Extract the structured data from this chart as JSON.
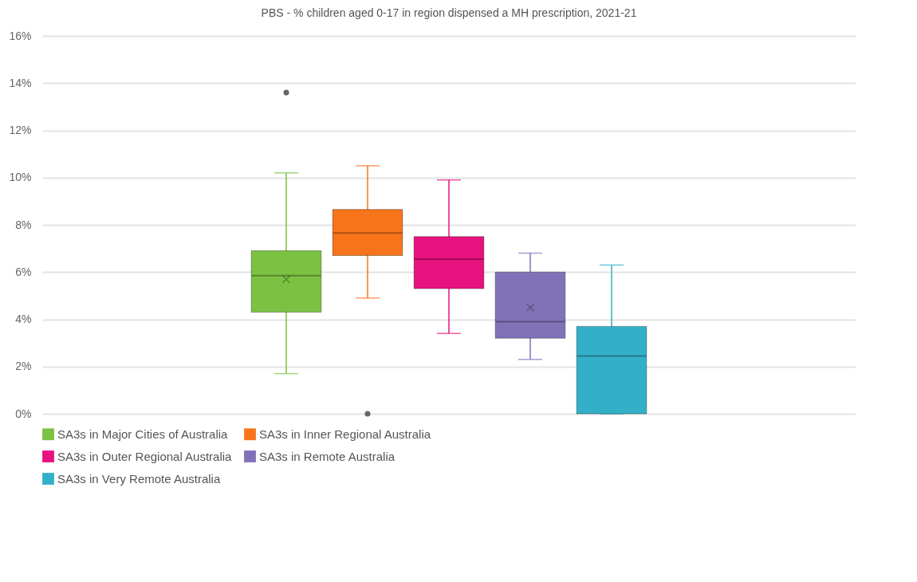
{
  "chart_data": {
    "type": "box",
    "title": "PBS - % children aged 0-17 in region dispensed a MH prescription, 2021-21",
    "categories": [
      null
    ],
    "series": [
      {
        "name": "SA3s in Major Cities of Australia",
        "color": "#7bc142",
        "boxes": [
          {
            "low": 1.7,
            "q1": 4.3,
            "median": 5.85,
            "q3": 6.9,
            "high": 10.2,
            "mean": 5.7,
            "outliers": [
              13.6
            ]
          }
        ]
      },
      {
        "name": "SA3s in Inner Regional Australia",
        "color": "#f7741a",
        "boxes": [
          {
            "low": 4.9,
            "q1": 6.7,
            "median": 7.65,
            "q3": 8.65,
            "high": 10.5,
            "outliers": [
              0
            ]
          }
        ]
      },
      {
        "name": "SA3s in Outer Regional Australia",
        "color": "#e6137f",
        "boxes": [
          {
            "low": 3.4,
            "q1": 5.3,
            "median": 6.55,
            "q3": 7.5,
            "high": 9.9
          }
        ]
      },
      {
        "name": "SA3s in Remote Australia",
        "color": "#8172b8",
        "boxes": [
          {
            "low": 2.3,
            "q1": 3.2,
            "median": 3.9,
            "q3": 6.0,
            "high": 6.8,
            "mean": 4.5
          }
        ]
      },
      {
        "name": "SA3s in Very Remote Australia",
        "color": "#33b0c8",
        "boxes": [
          {
            "low": 0,
            "q1": 0,
            "median": 2.45,
            "q3": 3.7,
            "high": 6.3
          }
        ]
      }
    ],
    "ylim": [
      0,
      16
    ],
    "yticks": [
      {
        "value": 0,
        "label": "0%"
      },
      {
        "value": 2,
        "label": "2%"
      },
      {
        "value": 4,
        "label": "4%"
      },
      {
        "value": 6,
        "label": "6%"
      },
      {
        "value": 8,
        "label": "8%"
      },
      {
        "value": 10,
        "label": "10%"
      },
      {
        "value": 12,
        "label": "12%"
      },
      {
        "value": 14,
        "label": "14%"
      },
      {
        "value": 16,
        "label": "16%"
      }
    ],
    "grid": "y",
    "legend": "bottom",
    "tick_labels": "y"
  }
}
